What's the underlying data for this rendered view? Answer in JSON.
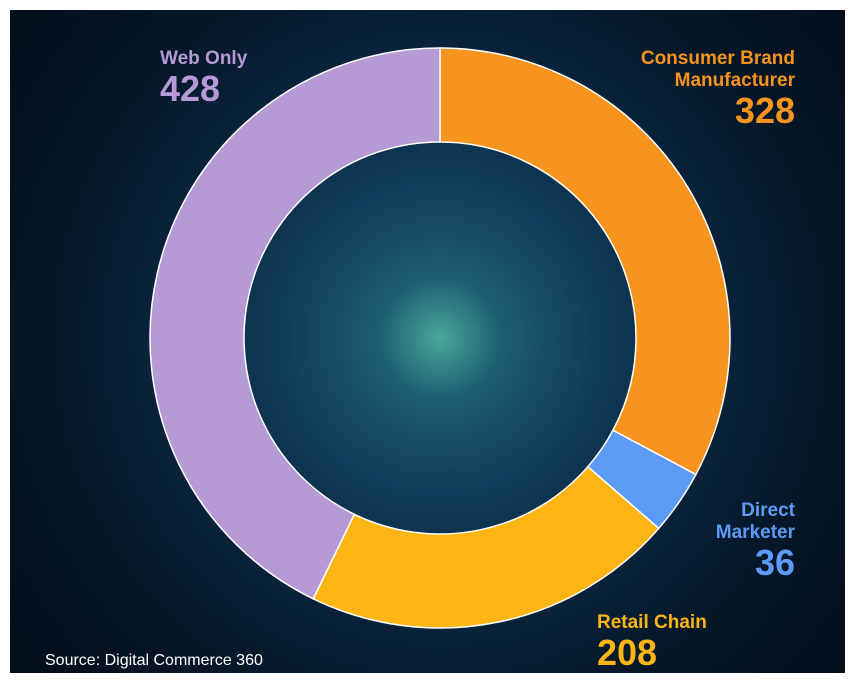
{
  "chart_data": {
    "type": "donut",
    "categories": [
      "Consumer Brand Manufacturer",
      "Direct Marketer",
      "Retail Chain",
      "Web Only"
    ],
    "values": [
      328,
      36,
      208,
      428
    ],
    "colors": [
      "#f7941d",
      "#5b9bf5",
      "#fdb515",
      "#b59ad6"
    ],
    "source": "Source: Digital Commerce 360"
  }
}
